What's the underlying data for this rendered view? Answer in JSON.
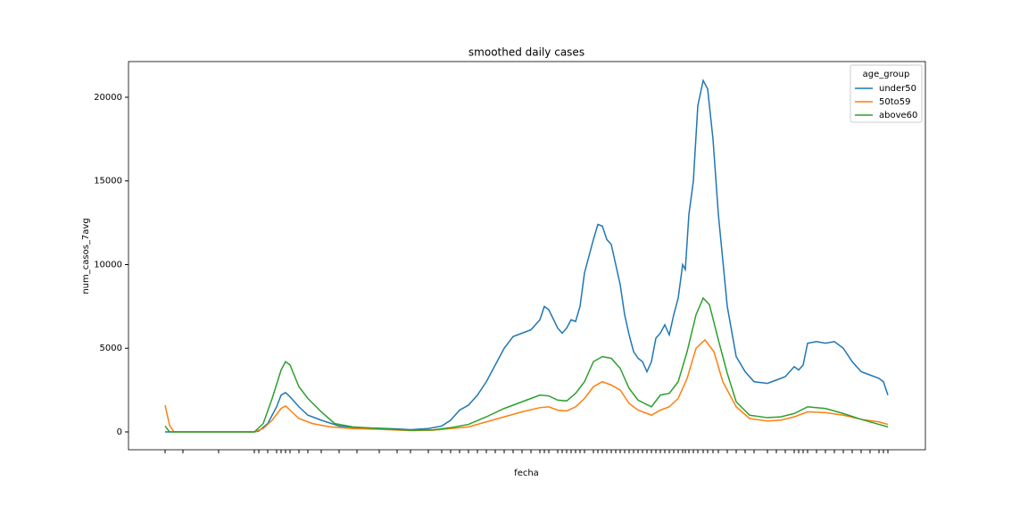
{
  "chart_data": {
    "type": "line",
    "title": "smoothed daily cases",
    "x_label": "fecha",
    "y_label": "num_casos_7avg",
    "legend_title": "age_group",
    "legend_position": "upper right",
    "xlim": [
      -41,
      852
    ],
    "ylim": [
      -1067,
      22133
    ],
    "yticks": [
      0,
      5000,
      10000,
      15000,
      20000
    ],
    "series": [
      {
        "name": "under50",
        "color": "#1f77b4",
        "x": [
          0,
          20,
          60,
          100,
          105,
          115,
          125,
          130,
          135,
          140,
          150,
          160,
          175,
          195,
          215,
          240,
          260,
          275,
          295,
          310,
          320,
          330,
          340,
          350,
          360,
          370,
          380,
          390,
          400,
          410,
          420,
          425,
          430,
          440,
          445,
          450,
          455,
          460,
          465,
          470,
          480,
          485,
          490,
          495,
          500,
          505,
          510,
          515,
          520,
          525,
          530,
          535,
          540,
          545,
          550,
          555,
          560,
          565,
          570,
          575,
          580,
          583,
          587,
          592,
          597,
          603,
          608,
          614,
          620,
          630,
          640,
          650,
          660,
          675,
          685,
          695,
          705,
          710,
          715,
          720,
          730,
          740,
          750,
          760,
          770,
          780,
          790,
          800,
          805,
          810
        ],
        "values": [
          0,
          0,
          0,
          0,
          50,
          500,
          1500,
          2200,
          2350,
          2100,
          1500,
          1000,
          700,
          350,
          250,
          220,
          180,
          130,
          200,
          350,
          700,
          1300,
          1600,
          2200,
          3000,
          4000,
          5000,
          5700,
          5900,
          6100,
          6700,
          7500,
          7300,
          6200,
          5900,
          6200,
          6700,
          6600,
          7500,
          9500,
          11500,
          12400,
          12300,
          11500,
          11200,
          10000,
          8800,
          7000,
          5800,
          4800,
          4400,
          4200,
          3600,
          4200,
          5600,
          5900,
          6400,
          5800,
          7000,
          8000,
          10000,
          9700,
          13000,
          15000,
          19500,
          21000,
          20500,
          17500,
          13000,
          7500,
          4500,
          3600,
          3000,
          2900,
          3100,
          3300,
          3900,
          3700,
          4000,
          5300,
          5400,
          5300,
          5400,
          5000,
          4200,
          3600,
          3400,
          3200,
          3000,
          2200
        ]
      },
      {
        "name": "50to59",
        "color": "#ff7f0e",
        "x": [
          0,
          5,
          10,
          100,
          110,
          120,
          130,
          135,
          140,
          150,
          165,
          185,
          210,
          240,
          275,
          300,
          320,
          340,
          360,
          380,
          400,
          420,
          430,
          440,
          450,
          460,
          470,
          480,
          490,
          500,
          510,
          520,
          530,
          545,
          555,
          565,
          575,
          585,
          595,
          605,
          615,
          625,
          640,
          655,
          675,
          690,
          705,
          720,
          740,
          760,
          780,
          800,
          810
        ],
        "values": [
          1600,
          400,
          0,
          0,
          200,
          700,
          1400,
          1550,
          1300,
          800,
          500,
          300,
          200,
          150,
          80,
          100,
          200,
          300,
          600,
          900,
          1200,
          1450,
          1500,
          1300,
          1250,
          1500,
          2000,
          2700,
          3000,
          2800,
          2500,
          1700,
          1300,
          1000,
          1300,
          1500,
          2000,
          3200,
          5000,
          5500,
          4800,
          3000,
          1500,
          800,
          650,
          700,
          900,
          1200,
          1150,
          1000,
          750,
          600,
          450
        ]
      },
      {
        "name": "above60",
        "color": "#2ca02c",
        "x": [
          0,
          5,
          100,
          110,
          120,
          130,
          135,
          140,
          150,
          160,
          175,
          190,
          210,
          240,
          275,
          300,
          320,
          340,
          360,
          380,
          400,
          420,
          430,
          440,
          450,
          460,
          470,
          480,
          490,
          500,
          510,
          520,
          530,
          545,
          555,
          565,
          575,
          585,
          595,
          603,
          610,
          620,
          630,
          640,
          655,
          675,
          690,
          705,
          720,
          740,
          760,
          780,
          800,
          810
        ],
        "values": [
          350,
          0,
          0,
          500,
          2000,
          3700,
          4200,
          4000,
          2700,
          2000,
          1200,
          500,
          300,
          200,
          100,
          120,
          250,
          450,
          900,
          1400,
          1800,
          2200,
          2150,
          1900,
          1850,
          2300,
          3000,
          4200,
          4500,
          4400,
          3800,
          2600,
          1900,
          1500,
          2200,
          2300,
          3000,
          4800,
          7000,
          8000,
          7600,
          5500,
          3500,
          1800,
          1000,
          850,
          900,
          1100,
          1500,
          1400,
          1100,
          750,
          450,
          300
        ]
      }
    ]
  }
}
